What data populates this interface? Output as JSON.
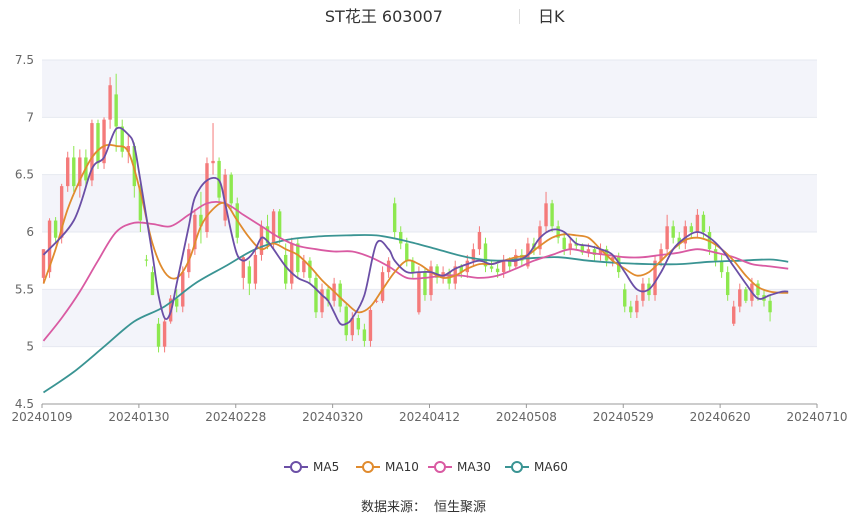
{
  "chart_data": {
    "type": "candlestick",
    "title": "ST花王 603007",
    "period": "日K",
    "source_label": "数据来源：",
    "source": "恒生聚源",
    "ylim": [
      4.5,
      7.5
    ],
    "y_ticks": [
      "4.5",
      "5",
      "5.5",
      "6",
      "6.5",
      "7",
      "7.5"
    ],
    "x_ticks": [
      "20240109",
      "20240130",
      "20240228",
      "20240320",
      "20240412",
      "20240508",
      "20240529",
      "20240620",
      "20240710"
    ],
    "x_tick_index": [
      0,
      16,
      32,
      48,
      64,
      80,
      96,
      112,
      128
    ],
    "colors": {
      "up": "#f47a7a",
      "down": "#8de84f",
      "MA5": "#6b4fa6",
      "MA10": "#e08b2e",
      "MA30": "#d95aa2",
      "MA60": "#3a9493",
      "grid": "#e6e9f0",
      "band": "#f3f4fa"
    },
    "legend": [
      "MA5",
      "MA10",
      "MA30",
      "MA60"
    ],
    "candles": [
      [
        5.6,
        5.85,
        5.55,
        5.85
      ],
      [
        5.65,
        6.12,
        5.6,
        6.1
      ],
      [
        6.1,
        6.13,
        5.9,
        5.95
      ],
      [
        5.95,
        6.42,
        5.9,
        6.4
      ],
      [
        6.4,
        6.7,
        6.35,
        6.65
      ],
      [
        6.65,
        6.75,
        6.35,
        6.4
      ],
      [
        6.4,
        6.72,
        6.3,
        6.65
      ],
      [
        6.65,
        6.72,
        6.38,
        6.45
      ],
      [
        6.45,
        6.98,
        6.4,
        6.95
      ],
      [
        6.95,
        6.98,
        6.55,
        6.6
      ],
      [
        6.6,
        7.0,
        6.55,
        6.98
      ],
      [
        6.98,
        7.35,
        6.9,
        7.28
      ],
      [
        7.2,
        7.38,
        6.7,
        6.92
      ],
      [
        6.92,
        6.98,
        6.65,
        6.7
      ],
      [
        6.7,
        6.85,
        6.6,
        6.75
      ],
      [
        6.75,
        6.78,
        6.3,
        6.4
      ],
      [
        6.4,
        6.42,
        6.0,
        6.1
      ],
      [
        5.76,
        5.8,
        5.7,
        5.75
      ],
      [
        5.65,
        5.7,
        5.45,
        5.45
      ],
      [
        5.2,
        5.25,
        4.95,
        5.0
      ],
      [
        5.0,
        5.25,
        4.95,
        5.22
      ],
      [
        5.22,
        5.45,
        5.2,
        5.42
      ],
      [
        5.42,
        5.5,
        5.3,
        5.35
      ],
      [
        5.35,
        5.7,
        5.3,
        5.65
      ],
      [
        5.65,
        5.9,
        5.6,
        5.85
      ],
      [
        5.85,
        6.2,
        5.8,
        6.15
      ],
      [
        6.15,
        6.35,
        5.9,
        6.05
      ],
      [
        6.0,
        6.65,
        5.95,
        6.6
      ],
      [
        6.6,
        6.95,
        6.5,
        6.62
      ],
      [
        6.62,
        6.65,
        6.25,
        6.3
      ],
      [
        6.1,
        6.55,
        6.05,
        6.5
      ],
      [
        6.5,
        6.52,
        6.2,
        6.25
      ],
      [
        6.25,
        6.3,
        5.9,
        5.95
      ],
      [
        5.6,
        5.8,
        5.5,
        5.78
      ],
      [
        5.7,
        5.75,
        5.45,
        5.55
      ],
      [
        5.55,
        5.85,
        5.5,
        5.8
      ],
      [
        5.8,
        6.1,
        5.75,
        6.05
      ],
      [
        6.05,
        6.15,
        5.85,
        5.9
      ],
      [
        5.9,
        6.2,
        5.85,
        6.18
      ],
      [
        6.18,
        6.2,
        5.9,
        5.95
      ],
      [
        5.8,
        5.9,
        5.5,
        5.55
      ],
      [
        5.55,
        5.95,
        5.5,
        5.9
      ],
      [
        5.9,
        5.95,
        5.6,
        5.65
      ],
      [
        5.65,
        5.8,
        5.6,
        5.75
      ],
      [
        5.75,
        5.78,
        5.55,
        5.6
      ],
      [
        5.6,
        5.65,
        5.25,
        5.3
      ],
      [
        5.3,
        5.55,
        5.25,
        5.5
      ],
      [
        5.5,
        5.52,
        5.35,
        5.4
      ],
      [
        5.4,
        5.6,
        5.35,
        5.55
      ],
      [
        5.55,
        5.58,
        5.3,
        5.35
      ],
      [
        5.35,
        5.38,
        5.05,
        5.1
      ],
      [
        5.1,
        5.3,
        5.05,
        5.25
      ],
      [
        5.25,
        5.28,
        5.1,
        5.15
      ],
      [
        5.15,
        5.2,
        5.0,
        5.05
      ],
      [
        5.05,
        5.35,
        5.0,
        5.32
      ],
      [
        5.4,
        5.42,
        5.38,
        5.4
      ],
      [
        5.4,
        5.7,
        5.38,
        5.65
      ],
      [
        5.65,
        5.78,
        5.6,
        5.75
      ],
      [
        6.25,
        6.3,
        5.95,
        6.0
      ],
      [
        6.0,
        6.05,
        5.85,
        5.9
      ],
      [
        5.9,
        5.95,
        5.7,
        5.75
      ],
      [
        5.75,
        5.78,
        5.6,
        5.65
      ],
      [
        5.3,
        5.7,
        5.28,
        5.65
      ],
      [
        5.65,
        5.68,
        5.4,
        5.45
      ],
      [
        5.45,
        5.75,
        5.4,
        5.7
      ],
      [
        5.7,
        5.72,
        5.55,
        5.6
      ],
      [
        5.6,
        5.7,
        5.55,
        5.65
      ],
      [
        5.65,
        5.68,
        5.5,
        5.55
      ],
      [
        5.55,
        5.75,
        5.5,
        5.7
      ],
      [
        5.7,
        5.72,
        5.6,
        5.65
      ],
      [
        5.65,
        5.8,
        5.6,
        5.75
      ],
      [
        5.75,
        5.9,
        5.7,
        5.85
      ],
      [
        5.85,
        6.05,
        5.8,
        6.0
      ],
      [
        5.9,
        5.95,
        5.65,
        5.7
      ],
      [
        5.7,
        5.75,
        5.65,
        5.68
      ],
      [
        5.68,
        5.72,
        5.6,
        5.65
      ],
      [
        5.65,
        5.8,
        5.6,
        5.75
      ],
      [
        5.75,
        5.78,
        5.65,
        5.7
      ],
      [
        5.7,
        5.85,
        5.68,
        5.8
      ],
      [
        5.8,
        5.85,
        5.7,
        5.75
      ],
      [
        5.7,
        5.95,
        5.68,
        5.9
      ],
      [
        5.9,
        5.95,
        5.8,
        5.85
      ],
      [
        5.85,
        6.1,
        5.8,
        6.05
      ],
      [
        6.05,
        6.35,
        6.0,
        6.25
      ],
      [
        6.25,
        6.28,
        6.0,
        6.05
      ],
      [
        6.05,
        6.1,
        5.9,
        5.95
      ],
      [
        5.95,
        6.0,
        5.8,
        5.85
      ],
      [
        5.85,
        5.95,
        5.8,
        5.9
      ],
      [
        5.9,
        5.95,
        5.85,
        5.88
      ],
      [
        5.88,
        5.9,
        5.8,
        5.82
      ],
      [
        5.82,
        5.9,
        5.78,
        5.85
      ],
      [
        5.85,
        5.88,
        5.75,
        5.8
      ],
      [
        5.8,
        5.9,
        5.75,
        5.85
      ],
      [
        5.85,
        5.88,
        5.7,
        5.75
      ],
      [
        5.75,
        5.8,
        5.7,
        5.78
      ],
      [
        5.78,
        5.82,
        5.6,
        5.65
      ],
      [
        5.5,
        5.55,
        5.3,
        5.35
      ],
      [
        5.35,
        5.4,
        5.25,
        5.3
      ],
      [
        5.3,
        5.45,
        5.25,
        5.4
      ],
      [
        5.4,
        5.6,
        5.35,
        5.55
      ],
      [
        5.55,
        5.6,
        5.4,
        5.45
      ],
      [
        5.45,
        5.8,
        5.4,
        5.75
      ],
      [
        5.75,
        5.9,
        5.7,
        5.85
      ],
      [
        5.85,
        6.15,
        5.8,
        6.05
      ],
      [
        6.05,
        6.1,
        5.9,
        5.95
      ],
      [
        5.95,
        6.0,
        5.85,
        5.9
      ],
      [
        5.9,
        6.1,
        5.85,
        6.05
      ],
      [
        6.05,
        6.08,
        5.95,
        6.0
      ],
      [
        6.0,
        6.2,
        5.95,
        6.15
      ],
      [
        6.15,
        6.18,
        5.95,
        6.0
      ],
      [
        6.0,
        6.05,
        5.8,
        5.85
      ],
      [
        5.85,
        5.9,
        5.7,
        5.75
      ],
      [
        5.75,
        5.8,
        5.6,
        5.65
      ],
      [
        5.65,
        5.7,
        5.4,
        5.45
      ],
      [
        5.2,
        5.4,
        5.18,
        5.35
      ],
      [
        5.35,
        5.55,
        5.3,
        5.5
      ],
      [
        5.5,
        5.52,
        5.38,
        5.4
      ],
      [
        5.4,
        5.6,
        5.35,
        5.55
      ],
      [
        5.55,
        5.58,
        5.4,
        5.45
      ],
      [
        5.45,
        5.5,
        5.35,
        5.4
      ],
      [
        5.4,
        5.45,
        5.22,
        5.3
      ]
    ],
    "ma5": [
      [
        0,
        5.8
      ],
      [
        5,
        6.1
      ],
      [
        8,
        6.55
      ],
      [
        10,
        6.65
      ],
      [
        12,
        6.9
      ],
      [
        14,
        6.85
      ],
      [
        15,
        6.75
      ],
      [
        16,
        6.45
      ],
      [
        18,
        5.8
      ],
      [
        19,
        5.45
      ],
      [
        20,
        5.25
      ],
      [
        21,
        5.3
      ],
      [
        22,
        5.55
      ],
      [
        24,
        6.05
      ],
      [
        25,
        6.3
      ],
      [
        27,
        6.45
      ],
      [
        29,
        6.45
      ],
      [
        30,
        6.25
      ],
      [
        31,
        6.0
      ],
      [
        32,
        5.8
      ],
      [
        33,
        5.75
      ],
      [
        34,
        5.78
      ],
      [
        35,
        5.85
      ],
      [
        36,
        5.95
      ],
      [
        37,
        5.92
      ],
      [
        38,
        5.85
      ],
      [
        40,
        5.7
      ],
      [
        42,
        5.6
      ],
      [
        44,
        5.55
      ],
      [
        46,
        5.45
      ],
      [
        47,
        5.4
      ],
      [
        48,
        5.3
      ],
      [
        49,
        5.2
      ],
      [
        50,
        5.2
      ],
      [
        51,
        5.25
      ],
      [
        53,
        5.45
      ],
      [
        55,
        5.9
      ],
      [
        57,
        5.85
      ],
      [
        58,
        5.75
      ],
      [
        60,
        5.65
      ],
      [
        62,
        5.65
      ],
      [
        64,
        5.65
      ],
      [
        66,
        5.62
      ],
      [
        68,
        5.68
      ],
      [
        70,
        5.72
      ],
      [
        72,
        5.75
      ],
      [
        74,
        5.72
      ],
      [
        76,
        5.75
      ],
      [
        78,
        5.75
      ],
      [
        80,
        5.8
      ],
      [
        82,
        5.95
      ],
      [
        84,
        6.02
      ],
      [
        86,
        6.0
      ],
      [
        88,
        5.9
      ],
      [
        90,
        5.88
      ],
      [
        92,
        5.85
      ],
      [
        94,
        5.8
      ],
      [
        96,
        5.65
      ],
      [
        98,
        5.5
      ],
      [
        100,
        5.5
      ],
      [
        102,
        5.65
      ],
      [
        104,
        5.85
      ],
      [
        106,
        5.95
      ],
      [
        108,
        6.0
      ],
      [
        110,
        5.95
      ],
      [
        112,
        5.85
      ],
      [
        114,
        5.7
      ],
      [
        116,
        5.55
      ],
      [
        118,
        5.42
      ],
      [
        120,
        5.45
      ],
      [
        122,
        5.48
      ],
      [
        123,
        5.48
      ]
    ],
    "ma10": [
      [
        0,
        5.55
      ],
      [
        2,
        5.85
      ],
      [
        4,
        6.2
      ],
      [
        6,
        6.45
      ],
      [
        8,
        6.65
      ],
      [
        10,
        6.75
      ],
      [
        12,
        6.75
      ],
      [
        14,
        6.7
      ],
      [
        16,
        6.35
      ],
      [
        18,
        5.9
      ],
      [
        20,
        5.65
      ],
      [
        22,
        5.6
      ],
      [
        24,
        5.75
      ],
      [
        26,
        6.05
      ],
      [
        28,
        6.2
      ],
      [
        30,
        6.25
      ],
      [
        32,
        6.1
      ],
      [
        34,
        5.95
      ],
      [
        36,
        5.85
      ],
      [
        38,
        5.9
      ],
      [
        40,
        5.85
      ],
      [
        42,
        5.8
      ],
      [
        44,
        5.7
      ],
      [
        46,
        5.58
      ],
      [
        48,
        5.48
      ],
      [
        50,
        5.38
      ],
      [
        52,
        5.3
      ],
      [
        54,
        5.35
      ],
      [
        56,
        5.5
      ],
      [
        58,
        5.65
      ],
      [
        60,
        5.75
      ],
      [
        62,
        5.72
      ],
      [
        64,
        5.65
      ],
      [
        66,
        5.6
      ],
      [
        68,
        5.62
      ],
      [
        70,
        5.68
      ],
      [
        72,
        5.72
      ],
      [
        74,
        5.72
      ],
      [
        76,
        5.75
      ],
      [
        78,
        5.78
      ],
      [
        80,
        5.8
      ],
      [
        82,
        5.88
      ],
      [
        84,
        5.95
      ],
      [
        86,
        5.98
      ],
      [
        88,
        5.97
      ],
      [
        90,
        5.95
      ],
      [
        92,
        5.85
      ],
      [
        94,
        5.75
      ],
      [
        96,
        5.68
      ],
      [
        98,
        5.62
      ],
      [
        100,
        5.65
      ],
      [
        102,
        5.75
      ],
      [
        104,
        5.85
      ],
      [
        106,
        5.93
      ],
      [
        108,
        5.95
      ],
      [
        110,
        5.92
      ],
      [
        112,
        5.85
      ],
      [
        114,
        5.75
      ],
      [
        116,
        5.62
      ],
      [
        118,
        5.52
      ],
      [
        120,
        5.48
      ],
      [
        122,
        5.47
      ],
      [
        123,
        5.47
      ]
    ],
    "ma30": [
      [
        0,
        5.05
      ],
      [
        3,
        5.25
      ],
      [
        6,
        5.48
      ],
      [
        9,
        5.75
      ],
      [
        12,
        6.0
      ],
      [
        15,
        6.08
      ],
      [
        18,
        6.07
      ],
      [
        21,
        6.05
      ],
      [
        24,
        6.15
      ],
      [
        27,
        6.25
      ],
      [
        30,
        6.25
      ],
      [
        33,
        6.15
      ],
      [
        36,
        6.05
      ],
      [
        39,
        5.95
      ],
      [
        42,
        5.88
      ],
      [
        45,
        5.85
      ],
      [
        48,
        5.83
      ],
      [
        51,
        5.83
      ],
      [
        54,
        5.78
      ],
      [
        57,
        5.7
      ],
      [
        60,
        5.6
      ],
      [
        63,
        5.6
      ],
      [
        66,
        5.62
      ],
      [
        69,
        5.62
      ],
      [
        72,
        5.6
      ],
      [
        75,
        5.62
      ],
      [
        78,
        5.68
      ],
      [
        81,
        5.75
      ],
      [
        84,
        5.8
      ],
      [
        87,
        5.85
      ],
      [
        90,
        5.82
      ],
      [
        93,
        5.8
      ],
      [
        96,
        5.78
      ],
      [
        99,
        5.78
      ],
      [
        102,
        5.8
      ],
      [
        105,
        5.82
      ],
      [
        108,
        5.85
      ],
      [
        111,
        5.82
      ],
      [
        114,
        5.78
      ],
      [
        117,
        5.72
      ],
      [
        120,
        5.7
      ],
      [
        123,
        5.68
      ]
    ],
    "ma60": [
      [
        0,
        4.6
      ],
      [
        5,
        4.78
      ],
      [
        10,
        5.0
      ],
      [
        15,
        5.22
      ],
      [
        20,
        5.35
      ],
      [
        25,
        5.55
      ],
      [
        30,
        5.7
      ],
      [
        35,
        5.85
      ],
      [
        40,
        5.93
      ],
      [
        45,
        5.96
      ],
      [
        50,
        5.97
      ],
      [
        55,
        5.97
      ],
      [
        60,
        5.92
      ],
      [
        65,
        5.85
      ],
      [
        70,
        5.78
      ],
      [
        75,
        5.75
      ],
      [
        80,
        5.77
      ],
      [
        85,
        5.78
      ],
      [
        90,
        5.75
      ],
      [
        95,
        5.73
      ],
      [
        100,
        5.72
      ],
      [
        105,
        5.72
      ],
      [
        110,
        5.74
      ],
      [
        115,
        5.75
      ],
      [
        120,
        5.76
      ],
      [
        123,
        5.74
      ]
    ]
  }
}
